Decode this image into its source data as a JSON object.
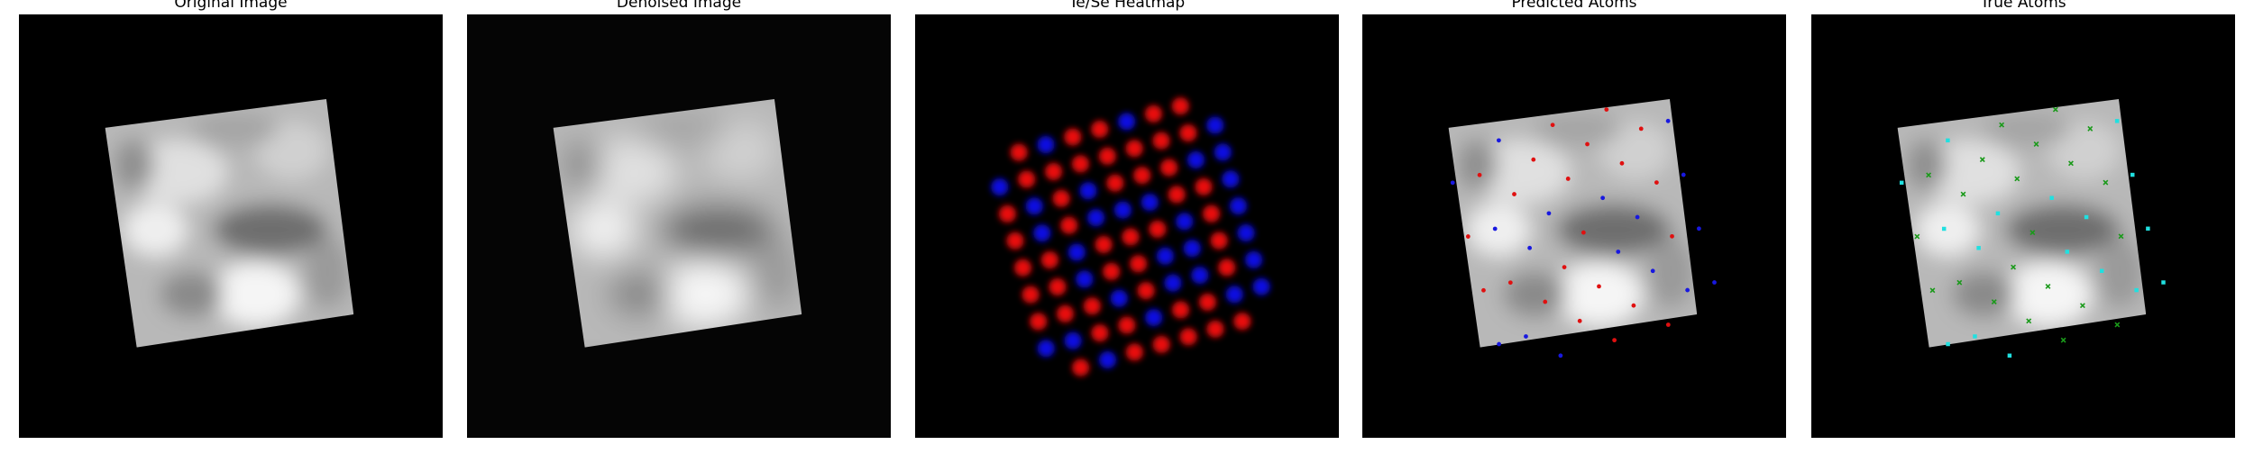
{
  "panels": [
    {
      "title": "Original Image"
    },
    {
      "title": "Denoised Image"
    },
    {
      "title": "Te/Se Heatmap"
    },
    {
      "title": "Predicted Atoms"
    },
    {
      "title": "True Atoms"
    }
  ]
}
